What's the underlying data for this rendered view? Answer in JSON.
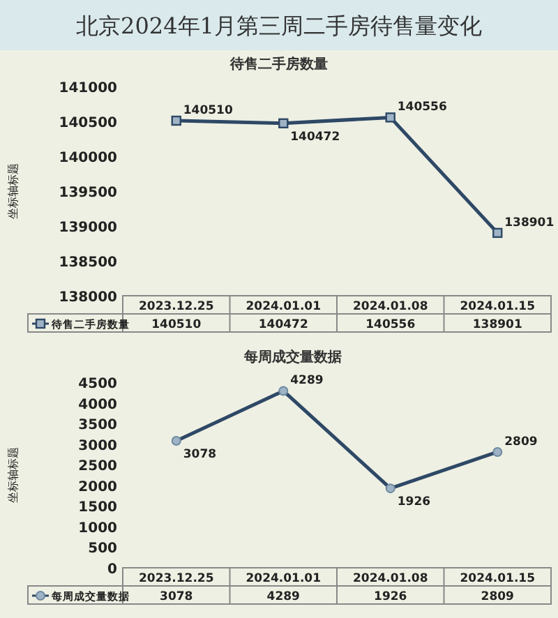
{
  "chart_data": [
    {
      "type": "line",
      "title": "北京2024年1月第三周二手房待售量变化",
      "subtitle": "待售二手房数量",
      "ylabel": "坐标轴标题",
      "categories": [
        "2023.12.25",
        "2024.01.01",
        "2024.01.08",
        "2024.01.15"
      ],
      "series": [
        {
          "name": "待售二手房数量",
          "color": "#2e4866",
          "values": [
            140510,
            140472,
            140556,
            138901
          ],
          "value_labels": [
            "140510",
            "140472",
            "140556",
            "138901"
          ]
        }
      ],
      "ylim": [
        138000,
        141000
      ],
      "yticks": [
        138000,
        138500,
        139000,
        139500,
        140000,
        140500,
        141000
      ],
      "data_labels": true,
      "marker": "square",
      "legend": "bottom"
    },
    {
      "type": "line",
      "title": "每周成交量数据",
      "ylabel": "坐标轴标题",
      "categories": [
        "2023.12.25",
        "2024.01.01",
        "2024.01.08",
        "2024.01.15"
      ],
      "series": [
        {
          "name": "每周成交量数据",
          "color": "#2e4866",
          "values": [
            3078,
            4289,
            1926,
            2809
          ],
          "value_labels": [
            "3078",
            "4289",
            "1926",
            "2809"
          ]
        }
      ],
      "ylim": [
        0,
        4500
      ],
      "yticks": [
        0,
        500,
        1000,
        1500,
        2000,
        2500,
        3000,
        3500,
        4000,
        4500
      ],
      "data_labels": true,
      "marker": "circle",
      "legend": "bottom"
    }
  ]
}
